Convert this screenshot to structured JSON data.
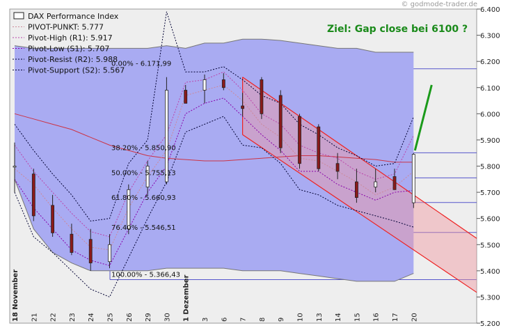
{
  "watermark": "© godmode-trader.de",
  "chart_data": {
    "type": "candlestick",
    "goal_text": "Ziel: Gap close bei 6100 ?",
    "legend": [
      {
        "label": "DAX Performance Index",
        "style": "box"
      },
      {
        "label": "PIVOT-PUNKT: 5.777",
        "style": "dotted",
        "color": "#cc8899"
      },
      {
        "label": "Pivot-High (R1): 5.917",
        "style": "dotted",
        "color": "#bb44aa"
      },
      {
        "label": "Pivot-Low (S1): 5.707",
        "style": "dotted",
        "color": "#8800aa"
      },
      {
        "label": "Pivot-Resist (R2): 5.988",
        "style": "dotted",
        "color": "#000033"
      },
      {
        "label": "Pivot-Support (S2): 5.567",
        "style": "dotted",
        "color": "#000033"
      }
    ],
    "y_ticks": [
      "6.400",
      "6.300",
      "6.200",
      "6.100",
      "6.000",
      "5.900",
      "5.800",
      "5.700",
      "5.600",
      "5.500",
      "5.400",
      "5.300",
      "5.200"
    ],
    "ylim": [
      5200,
      6400
    ],
    "x_labels": [
      "18 November",
      "21",
      "22",
      "23",
      "24",
      "25",
      "26",
      "29",
      "30",
      "1 Dezember",
      "3",
      "6",
      "7",
      "8",
      "9",
      "10",
      "13",
      "14",
      "15",
      "16",
      "17",
      "20"
    ],
    "fib_levels": [
      {
        "label": "0.00% - 6.171,99",
        "value": 6171.99
      },
      {
        "label": "38.20% - 5.850,90",
        "value": 5850.9
      },
      {
        "label": "50.00% - 5.755,13",
        "value": 5755.13
      },
      {
        "label": "61.80% - 5.660,93",
        "value": 5660.93
      },
      {
        "label": "76.40% - 5.546,51",
        "value": 5546.51
      },
      {
        "label": "100.00% - 5.366,43",
        "value": 5366.43
      }
    ],
    "candles": [
      {
        "x": "18 November",
        "o": 5800,
        "h": 5890,
        "l": 5700,
        "c": 5800
      },
      {
        "x": "21",
        "o": 5770,
        "h": 5790,
        "l": 5590,
        "c": 5610
      },
      {
        "x": "22",
        "o": 5650,
        "h": 5690,
        "l": 5530,
        "c": 5545
      },
      {
        "x": "23",
        "o": 5540,
        "h": 5580,
        "l": 5460,
        "c": 5470
      },
      {
        "x": "24",
        "o": 5520,
        "h": 5560,
        "l": 5400,
        "c": 5430
      },
      {
        "x": "25",
        "o": 5435,
        "h": 5540,
        "l": 5410,
        "c": 5500
      },
      {
        "x": "26",
        "o": 5560,
        "h": 5730,
        "l": 5540,
        "c": 5710
      },
      {
        "x": "29",
        "o": 5720,
        "h": 5820,
        "l": 5690,
        "c": 5800
      },
      {
        "x": "30",
        "o": 5740,
        "h": 6140,
        "l": 5730,
        "c": 6090
      },
      {
        "x": "1 Dezember",
        "o": 6090,
        "h": 6110,
        "l": 6040,
        "c": 6040
      },
      {
        "x": "3",
        "o": 6090,
        "h": 6150,
        "l": 6040,
        "c": 6130
      },
      {
        "x": "6",
        "o": 6130,
        "h": 6155,
        "l": 6090,
        "c": 6100
      },
      {
        "x": "7",
        "o": 6030,
        "h": 6080,
        "l": 5990,
        "c": 6020
      },
      {
        "x": "8",
        "o": 6130,
        "h": 6140,
        "l": 5980,
        "c": 6000
      },
      {
        "x": "9",
        "o": 6070,
        "h": 6090,
        "l": 5850,
        "c": 5870
      },
      {
        "x": "10",
        "o": 5990,
        "h": 6000,
        "l": 5790,
        "c": 5810
      },
      {
        "x": "13",
        "o": 5950,
        "h": 5960,
        "l": 5780,
        "c": 5790
      },
      {
        "x": "14",
        "o": 5810,
        "h": 5850,
        "l": 5750,
        "c": 5780
      },
      {
        "x": "15",
        "o": 5740,
        "h": 5790,
        "l": 5660,
        "c": 5680
      },
      {
        "x": "16",
        "o": 5720,
        "h": 5790,
        "l": 5700,
        "c": 5740
      },
      {
        "x": "17",
        "o": 5760,
        "h": 5790,
        "l": 5710,
        "c": 5710
      },
      {
        "x": "20",
        "o": 5660,
        "h": 5850,
        "l": 5640,
        "c": 5845
      }
    ],
    "bollinger_upper": [
      6260,
      6250,
      6250,
      6250,
      6250,
      6250,
      6250,
      6250,
      6260,
      6250,
      6270,
      6270,
      6285,
      6285,
      6280,
      6270,
      6260,
      6250,
      6250,
      6235,
      6235,
      6235
    ],
    "bollinger_lower": [
      5750,
      5560,
      5470,
      5430,
      5400,
      5400,
      5400,
      5400,
      5410,
      5410,
      5410,
      5410,
      5400,
      5400,
      5400,
      5390,
      5380,
      5370,
      5360,
      5360,
      5360,
      5390
    ],
    "moving_average": [
      6000,
      5980,
      5960,
      5940,
      5910,
      5880,
      5860,
      5840,
      5830,
      5825,
      5820,
      5820,
      5825,
      5830,
      5835,
      5840,
      5840,
      5835,
      5830,
      5825,
      5815,
      5815
    ],
    "pivot": [
      5790,
      5730,
      5640,
      5560,
      5490,
      5480,
      5640,
      5760,
      5860,
      6070,
      6090,
      6110,
      6050,
      5960,
      5910,
      5830,
      5820,
      5780,
      5740,
      5690,
      5720,
      5780
    ],
    "r1": [
      5880,
      5780,
      5700,
      5620,
      5550,
      5530,
      5700,
      5820,
      5920,
      6120,
      6130,
      6160,
      6090,
      6000,
      5960,
      5880,
      5850,
      5830,
      5780,
      5750,
      5770,
      5917
    ],
    "s1": [
      5750,
      5640,
      5560,
      5480,
      5440,
      5420,
      5560,
      5700,
      5800,
      6000,
      6040,
      6060,
      5990,
      5920,
      5860,
      5780,
      5780,
      5730,
      5700,
      5670,
      5700,
      5707
    ],
    "r2": [
      5960,
      5860,
      5770,
      5690,
      5590,
      5600,
      5810,
      5900,
      6390,
      6160,
      6160,
      6180,
      6130,
      6070,
      6040,
      5960,
      5920,
      5870,
      5840,
      5800,
      5810,
      5988
    ],
    "s2": [
      5700,
      5530,
      5470,
      5400,
      5330,
      5300,
      5450,
      5600,
      5740,
      5930,
      5960,
      5990,
      5880,
      5870,
      5810,
      5710,
      5690,
      5650,
      5630,
      5610,
      5590,
      5567
    ],
    "trend_channel": {
      "upper": [
        {
          "x": "7",
          "y": 6140
        },
        {
          "x": "20",
          "y": 5690
        }
      ],
      "lower": [
        {
          "x": "7",
          "y": 5920
        },
        {
          "x": "20",
          "y": 5480
        }
      ]
    },
    "target_arrow": {
      "from": {
        "x": "20",
        "y": 5860
      },
      "to_y": 6110
    }
  }
}
